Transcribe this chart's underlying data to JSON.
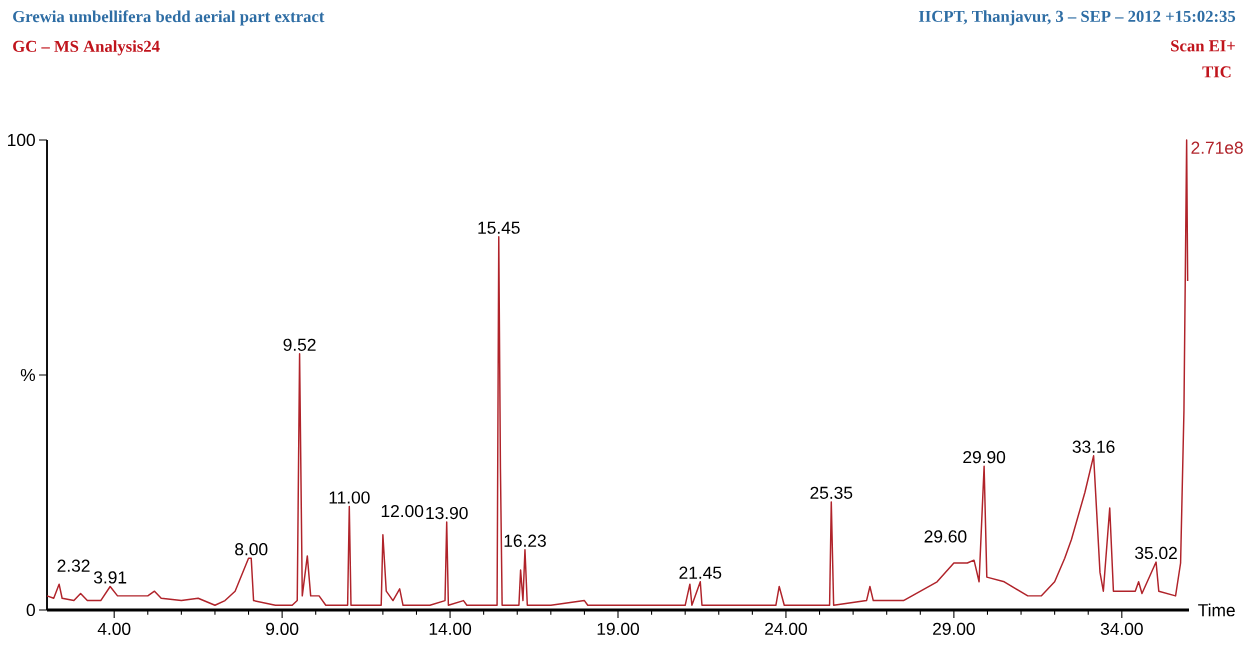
{
  "chart_data": {
    "type": "line",
    "title": "Grewia umbellifera bedd aerial part extract",
    "subtitle": "GC – MS Analysis24",
    "xlabel": "Time",
    "color": "#b0232a",
    "x": [
      2.0,
      2.2,
      2.36,
      2.45,
      2.8,
      3.0,
      3.2,
      3.6,
      3.88,
      4.1,
      4.5,
      5.0,
      5.2,
      5.4,
      6.0,
      6.5,
      7.0,
      7.3,
      7.6,
      8.0,
      8.08,
      8.15,
      8.8,
      9.3,
      9.45,
      9.52,
      9.6,
      9.75,
      9.85,
      10.1,
      10.3,
      10.95,
      11.0,
      11.05,
      11.5,
      11.95,
      12.0,
      12.1,
      12.3,
      12.5,
      12.6,
      13.4,
      13.85,
      13.9,
      13.95,
      14.4,
      14.5,
      15.4,
      15.45,
      15.5,
      15.55,
      16.05,
      16.1,
      16.17,
      16.23,
      16.3,
      17.0,
      18.0,
      18.1,
      21.0,
      21.14,
      21.2,
      21.45,
      21.5,
      22.5,
      23.7,
      23.8,
      23.95,
      25.3,
      25.35,
      25.42,
      26.4,
      26.5,
      26.6,
      27.5,
      28.5,
      29.0,
      29.4,
      29.6,
      29.75,
      29.9,
      29.98,
      30.5,
      31.2,
      31.6,
      32.0,
      32.3,
      32.5,
      32.9,
      33.16,
      33.35,
      33.45,
      33.64,
      33.75,
      34.4,
      34.5,
      34.6,
      35.02,
      35.1,
      35.6,
      35.75,
      35.85,
      35.93,
      35.96
    ],
    "values": [
      3,
      2.5,
      5.5,
      2.5,
      2,
      3.5,
      2,
      2,
      5,
      3,
      3,
      3,
      4,
      2.5,
      2,
      2.5,
      1,
      2,
      4,
      11,
      11,
      2,
      1,
      1,
      2,
      54.5,
      3,
      11.5,
      3,
      3,
      1,
      1,
      22,
      1,
      1,
      1,
      16,
      4,
      2,
      4.5,
      1,
      1,
      2,
      18.7,
      1,
      2,
      1,
      1,
      79.4,
      30,
      1,
      1,
      8.5,
      2,
      12.8,
      1,
      1,
      2,
      1,
      1,
      5.5,
      1,
      6,
      1,
      1,
      1,
      5,
      1,
      1,
      23,
      1,
      2,
      5,
      2,
      2,
      6,
      10,
      10,
      10.6,
      6,
      30.6,
      7,
      6,
      3,
      3,
      6,
      11,
      15,
      25,
      32.8,
      8,
      4,
      21.7,
      4,
      4,
      6,
      3.5,
      10.2,
      4,
      3,
      10,
      42.5,
      100,
      70
    ],
    "xlim": [
      2.0,
      36.0
    ],
    "ylim": [
      0,
      100
    ],
    "xticks": [
      {
        "value": 4,
        "label": "4.00"
      },
      {
        "value": 9,
        "label": "9.00"
      },
      {
        "value": 14,
        "label": "14.00"
      },
      {
        "value": 19,
        "label": "19.00"
      },
      {
        "value": 24,
        "label": "24.00"
      },
      {
        "value": 29,
        "label": "29.00"
      },
      {
        "value": 34,
        "label": "34.00"
      }
    ],
    "yticks": [
      0,
      {
        "value": 50,
        "label": "%"
      },
      100
    ],
    "annotations": [
      "IICPT, Thanjavur, 3 – SEP – 2012 +15:02:35",
      "Scan EI+",
      "TIC",
      "2.71e8",
      {
        "text": "2.32",
        "x": 2.36,
        "y": 5.5
      },
      {
        "text": "3.91",
        "x": 3.88,
        "y": 5
      },
      {
        "text": "8.00",
        "x": 8.08,
        "y": 11
      },
      {
        "text": "9.52",
        "x": 9.52,
        "y": 54.5
      },
      {
        "text": "11.00",
        "x": 11.0,
        "y": 22
      },
      {
        "text": "12.00",
        "x": 12.0,
        "y": 16
      },
      {
        "text": "13.90",
        "x": 13.9,
        "y": 18.7
      },
      {
        "text": "15.45",
        "x": 15.45,
        "y": 79.4
      },
      {
        "text": "16.23",
        "x": 16.23,
        "y": 12.8
      },
      {
        "text": "21.45",
        "x": 21.45,
        "y": 6
      },
      {
        "text": "25.35",
        "x": 25.35,
        "y": 23
      },
      {
        "text": "29.60",
        "x": 29.6,
        "y": 10.6
      },
      {
        "text": "29.90",
        "x": 29.9,
        "y": 30.6
      },
      {
        "text": "33.16",
        "x": 33.16,
        "y": 32.8
      },
      {
        "text": "35.02",
        "x": 35.02,
        "y": 10.2
      }
    ]
  }
}
